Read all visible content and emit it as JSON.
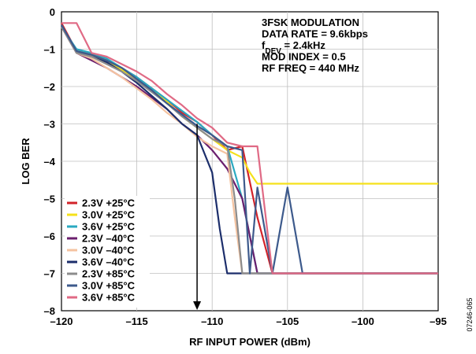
{
  "chart_data": {
    "type": "line",
    "xlabel": "RF INPUT POWER (dBm)",
    "ylabel": "LOG BER",
    "xlim": [
      -120,
      -95
    ],
    "ylim": [
      -8,
      0
    ],
    "x_ticks": [
      "–120",
      "–115",
      "–110",
      "–105",
      "–100",
      "–95"
    ],
    "y_ticks": [
      "0",
      "–1",
      "–2",
      "–3",
      "–4",
      "–5",
      "–6",
      "–7",
      "–8"
    ],
    "grid": true,
    "legend_position": "bottom-left",
    "annotation_lines": [
      {
        "text": "3FSK MODULATION"
      },
      {
        "text": "DATA RATE = 9.6kbps"
      },
      {
        "text": "f",
        "sub": "DEV",
        "rest": " = 2.4kHz"
      },
      {
        "text": "MOD INDEX = 0.5"
      },
      {
        "text": "RF FREQ = 440 MHz"
      }
    ],
    "marker": {
      "x": -111,
      "y_from": -3.0,
      "y_to": -8
    },
    "figure_id": "07246-065",
    "series": [
      {
        "name": "2.3V +25°C",
        "color": "#d2232a",
        "x": [
          -120,
          -119,
          -118,
          -117,
          -116,
          -115,
          -114,
          -113,
          -112,
          -111,
          -110,
          -109,
          -108,
          -107,
          -106,
          -95
        ],
        "y": [
          -0.3,
          -1.05,
          -1.15,
          -1.3,
          -1.5,
          -1.75,
          -2.05,
          -2.35,
          -2.7,
          -2.95,
          -3.3,
          -3.7,
          -3.6,
          -5.5,
          -7,
          -7
        ]
      },
      {
        "name": "3.0V +25°C",
        "color": "#f5e11a",
        "x": [
          -120,
          -119,
          -118,
          -117,
          -116,
          -115,
          -114,
          -113,
          -112,
          -111,
          -110,
          -109,
          -108,
          -107.5,
          -107,
          -95
        ],
        "y": [
          -0.4,
          -1.05,
          -1.15,
          -1.3,
          -1.55,
          -1.8,
          -2.1,
          -2.4,
          -2.8,
          -3.1,
          -3.4,
          -3.7,
          -3.9,
          -4.3,
          -4.6,
          -4.6
        ]
      },
      {
        "name": "3.6V +25°C",
        "color": "#2aa9c1",
        "x": [
          -120,
          -119,
          -118,
          -117,
          -116,
          -115,
          -114,
          -113,
          -112,
          -111,
          -110,
          -109,
          -108,
          -107,
          -95
        ],
        "y": [
          -0.4,
          -1.0,
          -1.1,
          -1.25,
          -1.5,
          -1.75,
          -2.05,
          -2.35,
          -2.65,
          -2.95,
          -3.3,
          -3.6,
          -5.0,
          -7,
          -7
        ]
      },
      {
        "name": "2.3V –40°C",
        "color": "#6b1f6e",
        "x": [
          -120,
          -119,
          -118,
          -117,
          -116,
          -115,
          -114,
          -113,
          -112,
          -111,
          -110,
          -109,
          -108,
          -107,
          -95
        ],
        "y": [
          -0.4,
          -1.1,
          -1.3,
          -1.5,
          -1.75,
          -2.0,
          -2.3,
          -2.6,
          -3.0,
          -3.3,
          -3.7,
          -4.2,
          -5.0,
          -7,
          -7
        ]
      },
      {
        "name": "3.0V –40°C",
        "color": "#f5c3a0",
        "x": [
          -120,
          -119,
          -118,
          -117,
          -116,
          -115,
          -114,
          -113,
          -112,
          -111,
          -110,
          -109,
          -108.5,
          -108,
          -95
        ],
        "y": [
          -0.4,
          -1.1,
          -1.25,
          -1.5,
          -1.75,
          -2.05,
          -2.35,
          -2.7,
          -3.0,
          -3.35,
          -3.6,
          -3.8,
          -5.5,
          -7,
          -7
        ]
      },
      {
        "name": "3.6V –40°C",
        "color": "#1c2e6b",
        "x": [
          -120,
          -119,
          -118,
          -117,
          -116,
          -115,
          -114,
          -113,
          -112,
          -111,
          -110.5,
          -110,
          -109.5,
          -109,
          -95
        ],
        "y": [
          -0.4,
          -1.05,
          -1.2,
          -1.35,
          -1.6,
          -1.9,
          -2.25,
          -2.6,
          -3.0,
          -3.3,
          -3.8,
          -4.3,
          -5.8,
          -7,
          -7
        ]
      },
      {
        "name": "2.3V +85°C",
        "color": "#8c8c8c",
        "x": [
          -120,
          -119,
          -118,
          -117,
          -116,
          -115,
          -114,
          -113,
          -112,
          -111,
          -110,
          -109,
          -108.5,
          -108,
          -95
        ],
        "y": [
          -0.4,
          -1.1,
          -1.2,
          -1.4,
          -1.6,
          -1.85,
          -2.15,
          -2.45,
          -2.8,
          -3.1,
          -3.4,
          -3.6,
          -5.0,
          -7,
          -7
        ]
      },
      {
        "name": "3.0V +85°C",
        "color": "#3d5a8c",
        "x": [
          -120,
          -119,
          -118,
          -117,
          -116,
          -115,
          -114,
          -113,
          -112,
          -111,
          -110,
          -109,
          -108,
          -107.5,
          -107,
          -106,
          -105,
          -104,
          -95
        ],
        "y": [
          -0.35,
          -1.05,
          -1.15,
          -1.3,
          -1.5,
          -1.8,
          -2.1,
          -2.45,
          -2.75,
          -3.05,
          -3.3,
          -3.6,
          -3.7,
          -7,
          -4.7,
          -7,
          -4.7,
          -7,
          -7
        ]
      },
      {
        "name": "3.6V +85°C",
        "color": "#e06a85",
        "x": [
          -120,
          -119,
          -118,
          -117,
          -116,
          -115,
          -114,
          -113,
          -112,
          -111,
          -110,
          -109,
          -108,
          -107,
          -106.5,
          -106,
          -95
        ],
        "y": [
          -0.3,
          -0.3,
          -1.1,
          -1.2,
          -1.4,
          -1.6,
          -1.85,
          -2.2,
          -2.5,
          -2.85,
          -3.1,
          -3.5,
          -3.6,
          -3.6,
          -5.3,
          -7,
          -7
        ]
      }
    ]
  }
}
